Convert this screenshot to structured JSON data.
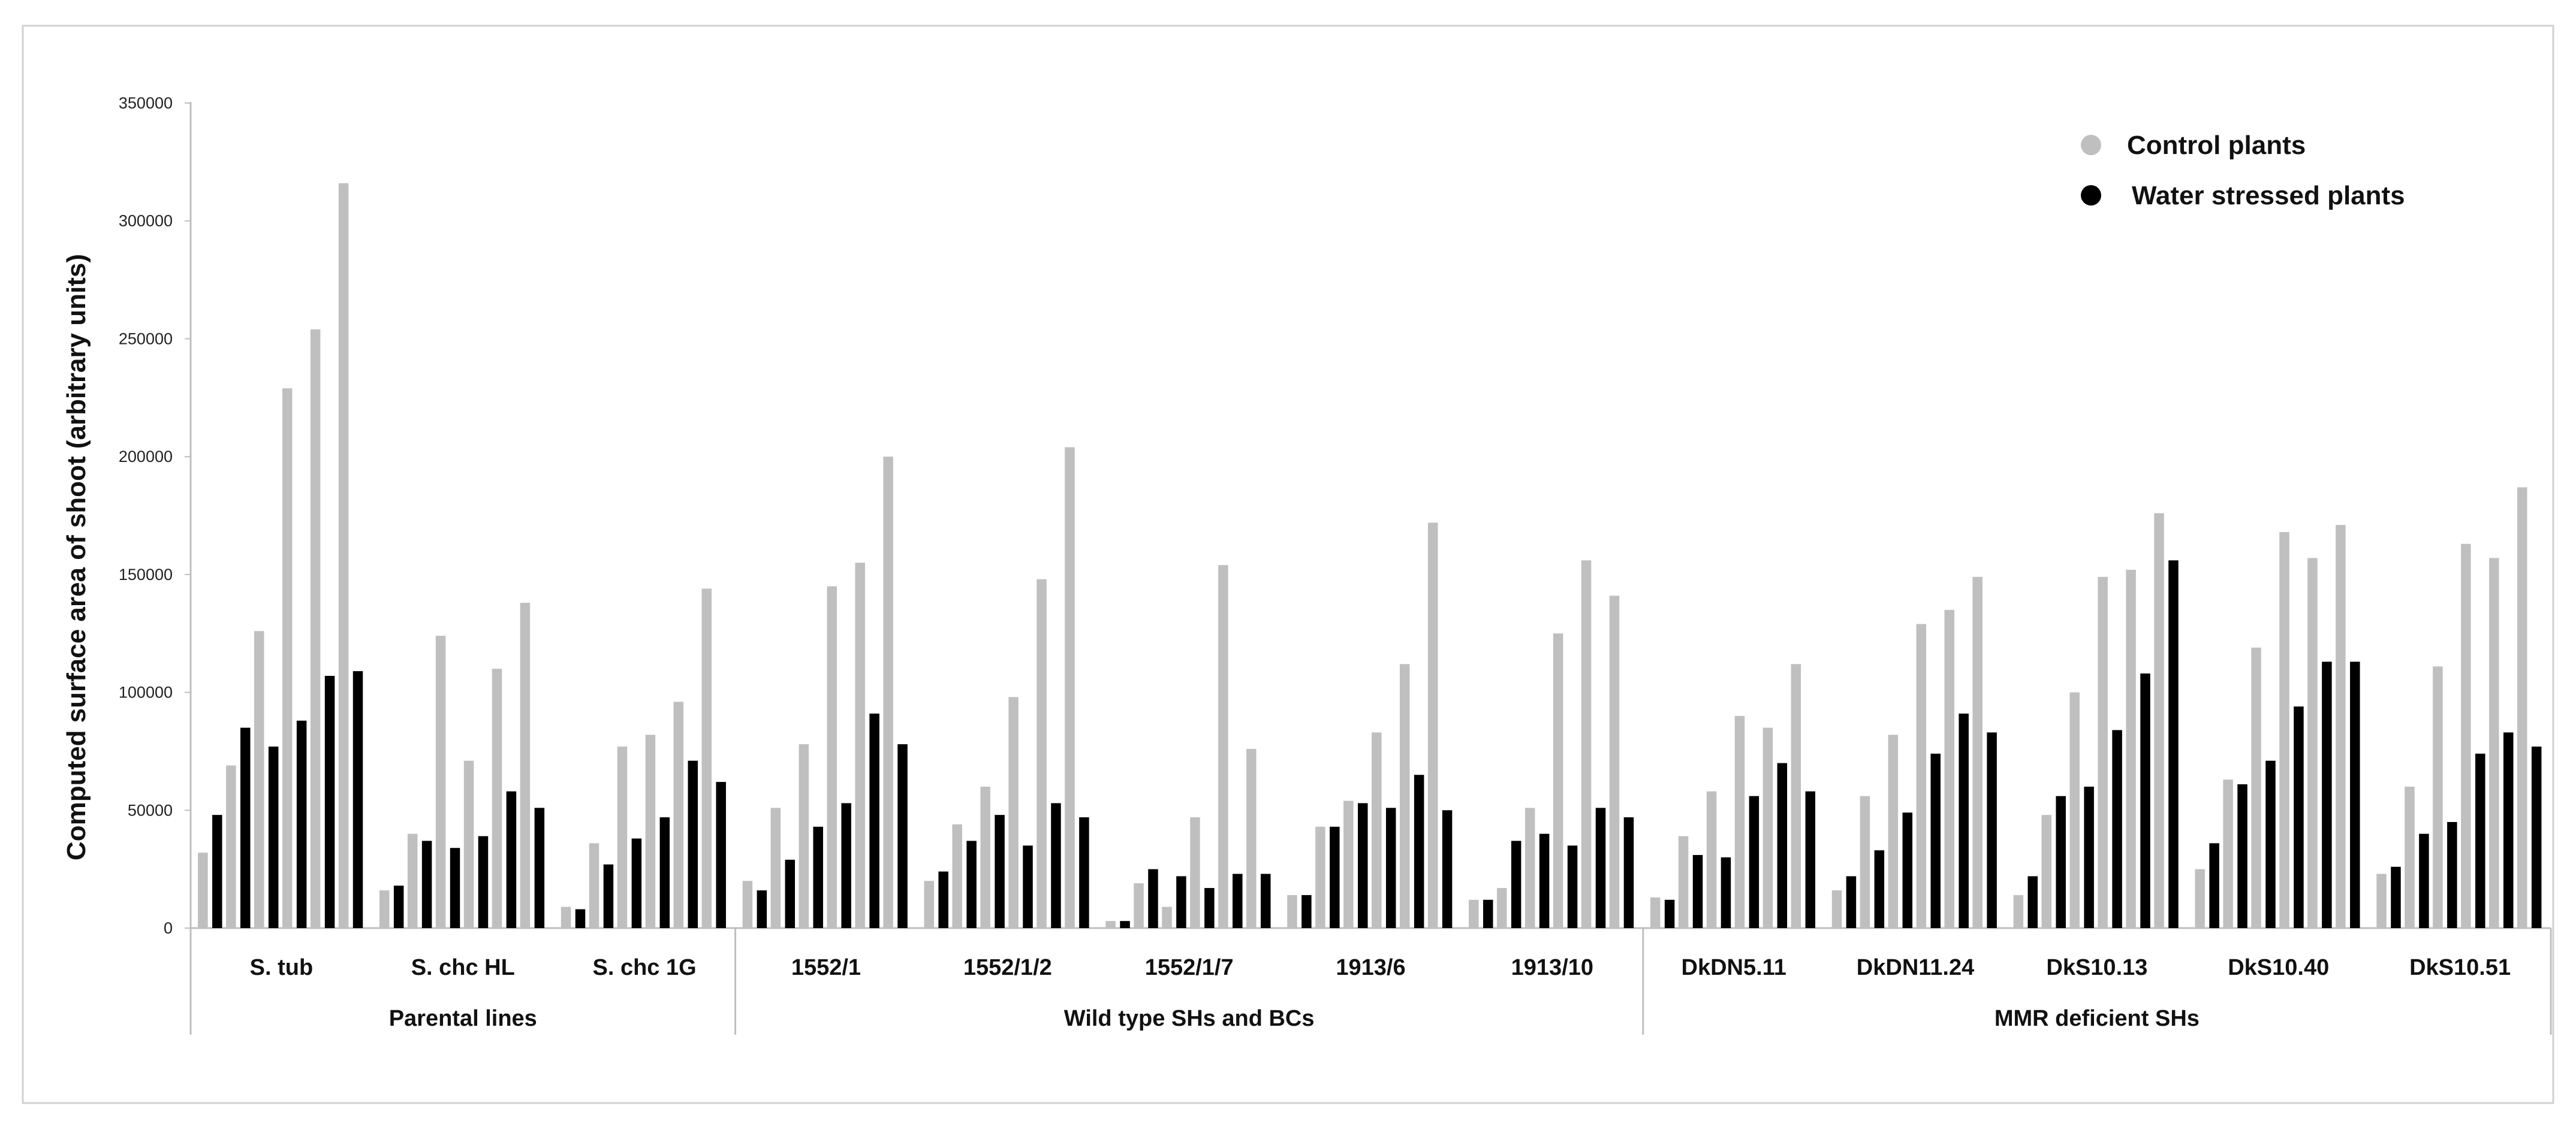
{
  "chart_data": {
    "type": "bar",
    "title": "",
    "xlabel": "",
    "ylabel": "Computed surface area of shoot (arbitrary units)",
    "ylim": [
      0,
      350000
    ],
    "yticks": [
      0,
      50000,
      100000,
      150000,
      200000,
      250000,
      300000,
      350000
    ],
    "ytick_labels": [
      "0",
      "50000",
      "100000",
      "150000",
      "200000",
      "250000",
      "300000",
      "350000"
    ],
    "grid": false,
    "legend_position": "top-right",
    "series": [
      {
        "name": "Control plants",
        "color": "#bfbfbf"
      },
      {
        "name": "Water stressed plants",
        "color": "#000000"
      }
    ],
    "groups": [
      {
        "label": "Parental lines",
        "categories": [
          "S. tub",
          "S. chc HL",
          "S. chc 1G"
        ]
      },
      {
        "label": "Wild type SHs and BCs",
        "categories": [
          "1552/1",
          "1552/1/2",
          "1552/1/7",
          "1913/6",
          "1913/10"
        ]
      },
      {
        "label": "MMR deficient SHs",
        "categories": [
          "DkDN5.11",
          "DkDN11.24",
          "DkS10.13",
          "DkS10.40",
          "DkS10.51"
        ]
      }
    ],
    "categories": [
      "S. tub",
      "S. chc HL",
      "S. chc 1G",
      "1552/1",
      "1552/1/2",
      "1552/1/7",
      "1913/6",
      "1913/10",
      "DkDN5.11",
      "DkDN11.24",
      "DkS10.13",
      "DkS10.40",
      "DkS10.51"
    ],
    "timepoint_pairs": [
      {
        "category": "S. tub",
        "control": [
          32000,
          69000,
          126000,
          229000,
          254000,
          316000
        ],
        "stressed": [
          48000,
          85000,
          77000,
          88000,
          107000,
          109000
        ]
      },
      {
        "category": "S. chc HL",
        "control": [
          16000,
          40000,
          124000,
          71000,
          110000,
          138000
        ],
        "stressed": [
          18000,
          37000,
          34000,
          39000,
          58000,
          51000
        ]
      },
      {
        "category": "S. chc 1G",
        "control": [
          9000,
          36000,
          77000,
          82000,
          96000,
          144000
        ],
        "stressed": [
          8000,
          27000,
          38000,
          47000,
          71000,
          62000
        ]
      },
      {
        "category": "1552/1",
        "control": [
          20000,
          51000,
          78000,
          145000,
          155000,
          200000
        ],
        "stressed": [
          16000,
          29000,
          43000,
          53000,
          91000,
          78000
        ]
      },
      {
        "category": "1552/1/2",
        "control": [
          20000,
          44000,
          60000,
          98000,
          148000,
          204000
        ],
        "stressed": [
          24000,
          37000,
          48000,
          35000,
          53000,
          47000
        ]
      },
      {
        "category": "1552/1/7",
        "control": [
          3000,
          19000,
          9000,
          47000,
          154000,
          76000
        ],
        "stressed": [
          3000,
          25000,
          22000,
          17000,
          23000,
          23000
        ]
      },
      {
        "category": "1913/6",
        "control": [
          14000,
          43000,
          54000,
          83000,
          112000,
          172000
        ],
        "stressed": [
          14000,
          43000,
          53000,
          51000,
          65000,
          50000
        ]
      },
      {
        "category": "1913/10",
        "control": [
          12000,
          17000,
          51000,
          125000,
          156000,
          141000
        ],
        "stressed": [
          12000,
          37000,
          40000,
          35000,
          51000,
          47000
        ]
      },
      {
        "category": "DkDN5.11",
        "control": [
          13000,
          39000,
          58000,
          90000,
          85000,
          112000
        ],
        "stressed": [
          12000,
          31000,
          30000,
          56000,
          70000,
          58000
        ]
      },
      {
        "category": "DkDN11.24",
        "control": [
          16000,
          56000,
          82000,
          129000,
          135000,
          149000
        ],
        "stressed": [
          22000,
          33000,
          49000,
          74000,
          91000,
          83000
        ]
      },
      {
        "category": "DkS10.13",
        "control": [
          14000,
          48000,
          100000,
          149000,
          152000,
          176000
        ],
        "stressed": [
          22000,
          56000,
          60000,
          84000,
          108000,
          156000
        ]
      },
      {
        "category": "DkS10.40",
        "control": [
          25000,
          63000,
          119000,
          168000,
          157000,
          171000
        ],
        "stressed": [
          36000,
          61000,
          71000,
          94000,
          113000,
          113000
        ]
      },
      {
        "category": "DkS10.51",
        "control": [
          23000,
          60000,
          111000,
          163000,
          157000,
          187000
        ],
        "stressed": [
          26000,
          40000,
          45000,
          74000,
          83000,
          77000
        ]
      }
    ]
  }
}
